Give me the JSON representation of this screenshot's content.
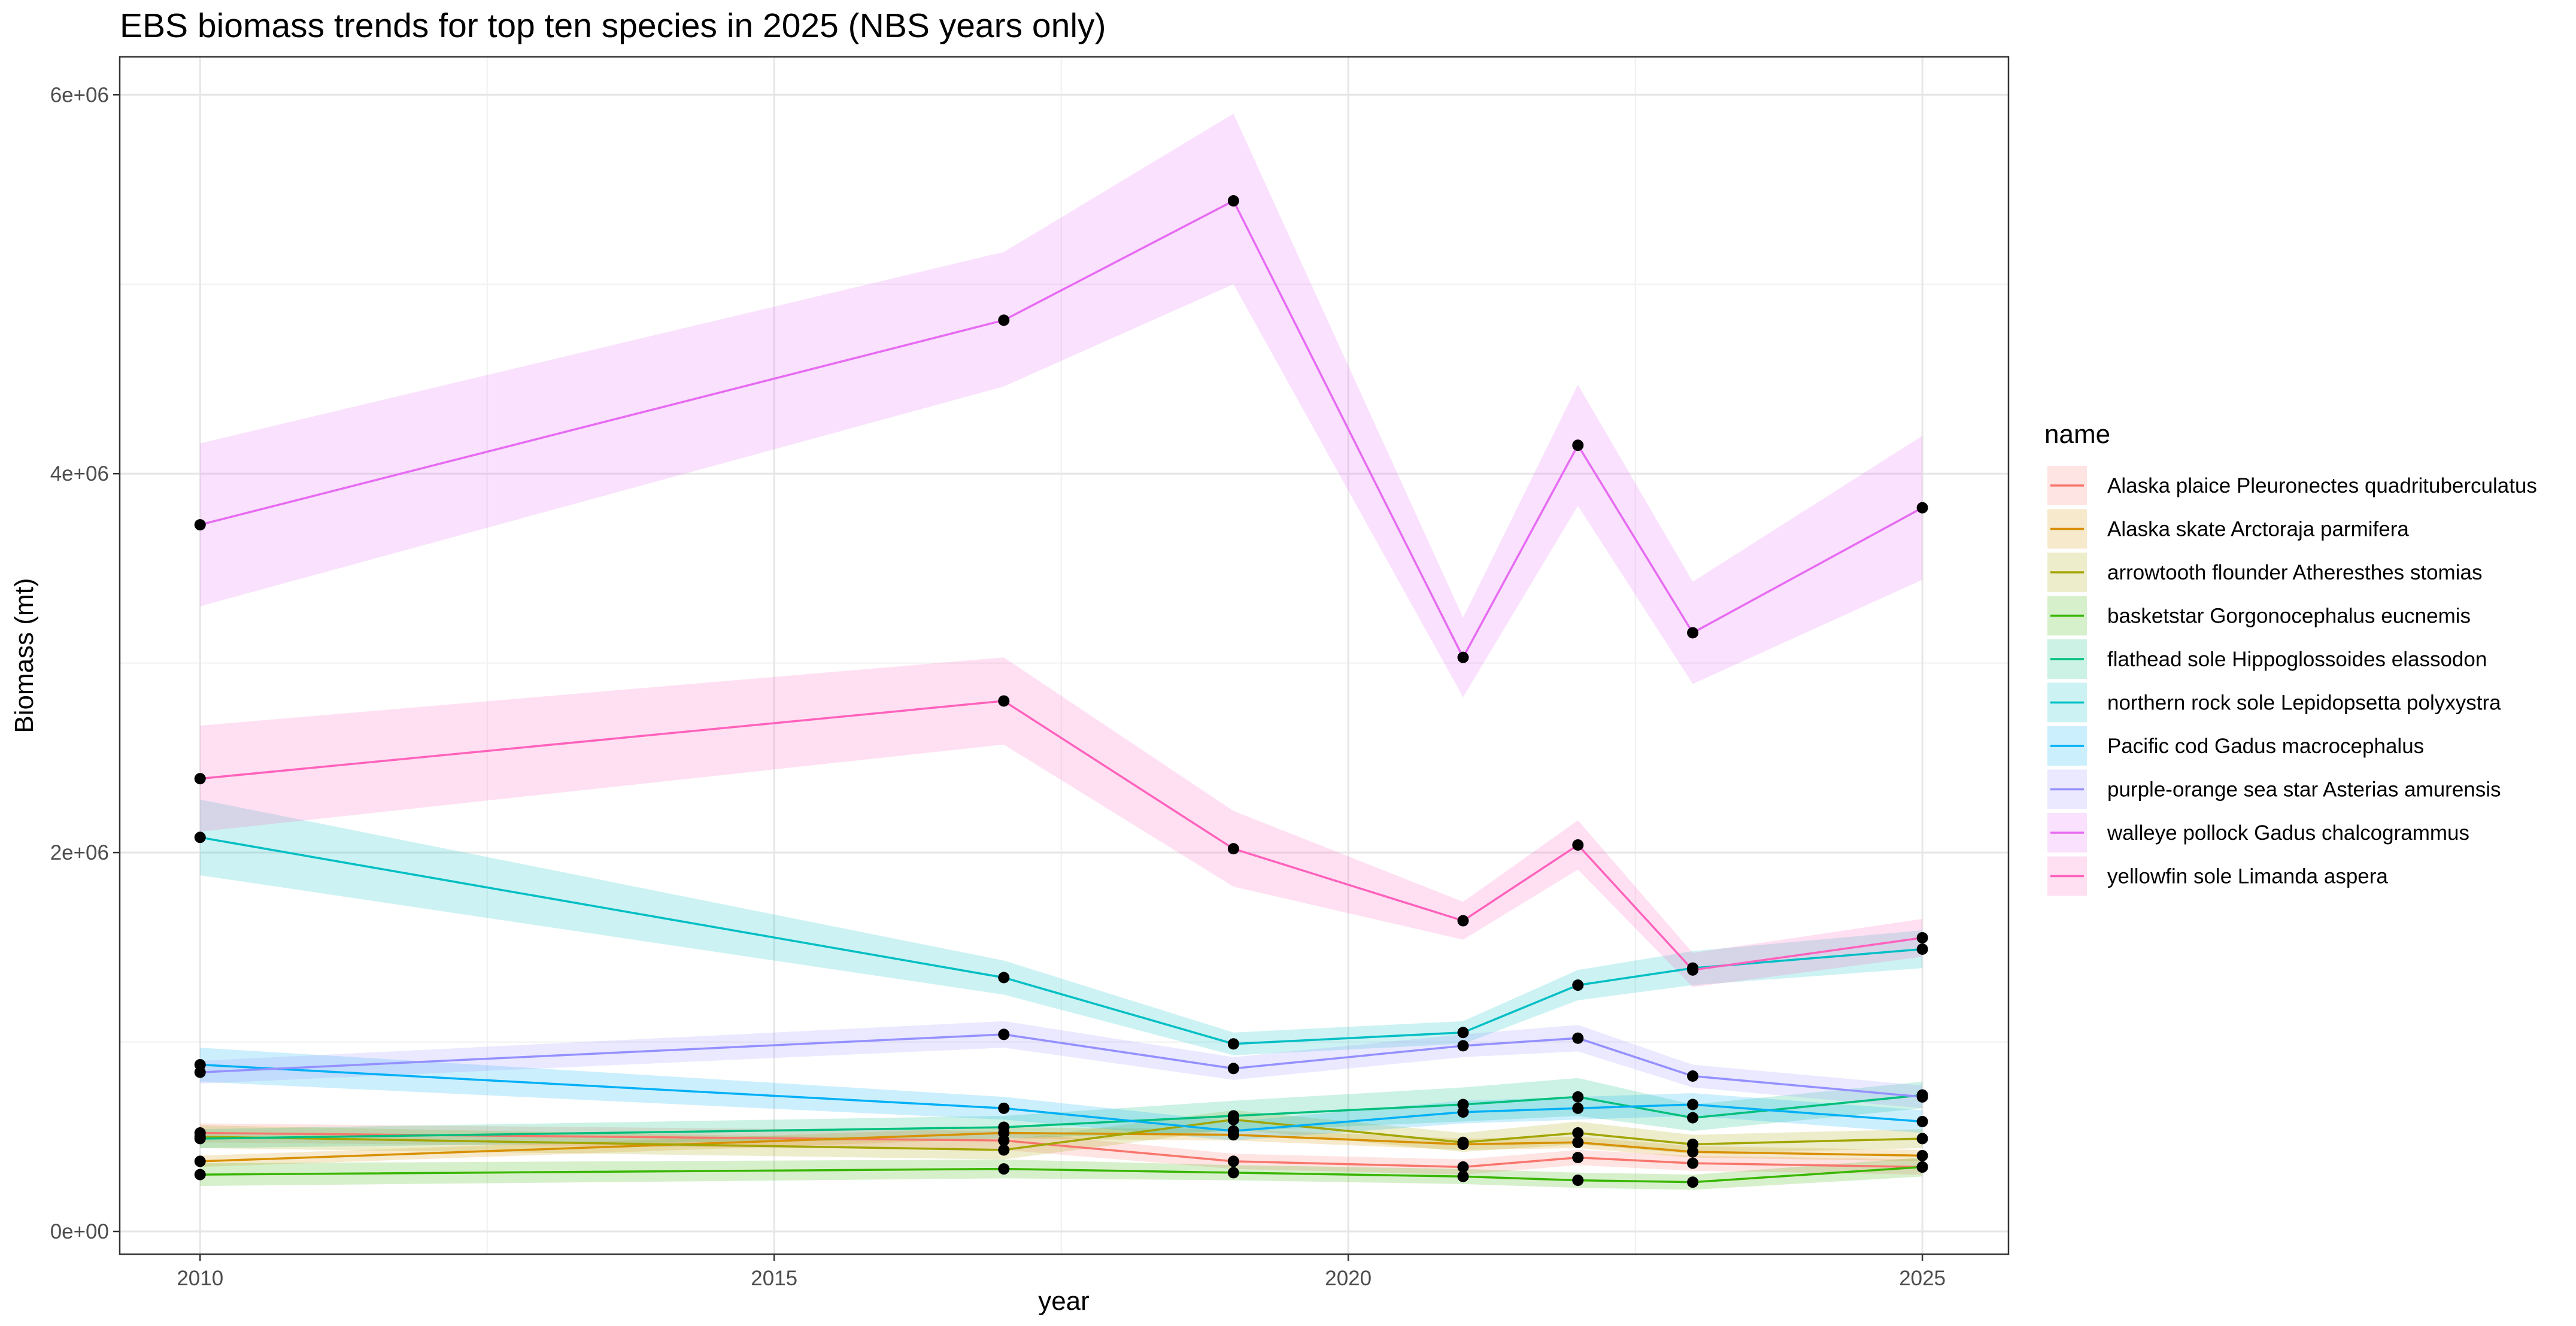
{
  "chart_data": {
    "type": "line",
    "title": "EBS biomass trends for top ten species in 2025 (NBS years only)",
    "xlabel": "year",
    "ylabel": "Biomass (mt)",
    "xlim": [
      2009.3,
      2025.75
    ],
    "ylim": [
      -120000,
      6200000
    ],
    "x_ticks": [
      2010,
      2015,
      2020,
      2025
    ],
    "x_tick_labels": [
      "2010",
      "2015",
      "2020",
      "2025"
    ],
    "y_ticks": [
      0,
      2000000,
      4000000,
      6000000
    ],
    "y_tick_labels": [
      "0e+00",
      "2e+06",
      "4e+06",
      "6e+06"
    ],
    "grid": true,
    "theme": "bw",
    "legend_title": "name",
    "legend_position": "right",
    "x": [
      2010,
      2017,
      2019,
      2021,
      2022,
      2023,
      2025
    ],
    "series": [
      {
        "name": "Alaska plaice Pleuronectes quadrituberculatus",
        "color": "#F8766D",
        "values": [
          520000,
          480000,
          370000,
          340000,
          390000,
          360000,
          340000
        ],
        "lower": [
          470000,
          430000,
          330000,
          300000,
          350000,
          320000,
          300000
        ],
        "upper": [
          570000,
          530000,
          410000,
          380000,
          430000,
          400000,
          380000
        ]
      },
      {
        "name": "Alaska skate Arctoraja parmifera",
        "color": "#D89000",
        "values": [
          370000,
          520000,
          510000,
          460000,
          470000,
          420000,
          400000
        ],
        "lower": [
          340000,
          490000,
          480000,
          430000,
          440000,
          390000,
          370000
        ],
        "upper": [
          400000,
          550000,
          540000,
          490000,
          500000,
          450000,
          430000
        ]
      },
      {
        "name": "arrowtooth flounder Atheresthes stomias",
        "color": "#A3A500",
        "values": [
          500000,
          430000,
          590000,
          470000,
          520000,
          460000,
          490000
        ],
        "lower": [
          440000,
          380000,
          540000,
          420000,
          460000,
          410000,
          440000
        ],
        "upper": [
          560000,
          480000,
          640000,
          520000,
          580000,
          510000,
          540000
        ]
      },
      {
        "name": "basketstar Gorgonocephalus eucnemis",
        "color": "#39B600",
        "values": [
          300000,
          330000,
          310000,
          290000,
          270000,
          260000,
          340000
        ],
        "lower": [
          240000,
          280000,
          270000,
          250000,
          230000,
          220000,
          290000
        ],
        "upper": [
          360000,
          380000,
          350000,
          330000,
          310000,
          300000,
          390000
        ]
      },
      {
        "name": "flathead sole Hippoglossoides elassodon",
        "color": "#00BF7D",
        "values": [
          490000,
          550000,
          610000,
          670000,
          710000,
          600000,
          720000
        ],
        "lower": [
          440000,
          490000,
          530000,
          580000,
          610000,
          530000,
          650000
        ],
        "upper": [
          540000,
          610000,
          690000,
          760000,
          810000,
          670000,
          790000
        ]
      },
      {
        "name": "northern rock sole Lepidopsetta polyxystra",
        "color": "#00BFC4",
        "values": [
          2080000,
          1340000,
          990000,
          1050000,
          1300000,
          1390000,
          1490000
        ],
        "lower": [
          1880000,
          1250000,
          930000,
          990000,
          1220000,
          1300000,
          1390000
        ],
        "upper": [
          2280000,
          1430000,
          1050000,
          1110000,
          1380000,
          1480000,
          1590000
        ]
      },
      {
        "name": "Pacific cod Gadus macrocephalus",
        "color": "#00B0F6",
        "values": [
          880000,
          650000,
          530000,
          630000,
          650000,
          670000,
          580000
        ],
        "lower": [
          790000,
          590000,
          480000,
          570000,
          590000,
          610000,
          520000
        ],
        "upper": [
          970000,
          710000,
          580000,
          690000,
          710000,
          730000,
          640000
        ]
      },
      {
        "name": "purple-orange sea star Asterias amurensis",
        "color": "#9590FF",
        "values": [
          840000,
          1040000,
          860000,
          980000,
          1020000,
          820000,
          710000
        ],
        "lower": [
          780000,
          970000,
          800000,
          920000,
          950000,
          760000,
          650000
        ],
        "upper": [
          900000,
          1110000,
          920000,
          1040000,
          1090000,
          880000,
          770000
        ]
      },
      {
        "name": "walleye pollock Gadus chalcogrammus",
        "color": "#E76BF3",
        "values": [
          3730000,
          4810000,
          5440000,
          3030000,
          4150000,
          3160000,
          3820000
        ],
        "lower": [
          3300000,
          4460000,
          5000000,
          2820000,
          3830000,
          2890000,
          3440000
        ],
        "upper": [
          4160000,
          5170000,
          5900000,
          3240000,
          4470000,
          3430000,
          4200000
        ]
      },
      {
        "name": "yellowfin sole Limanda aspera",
        "color": "#FF62BC",
        "values": [
          2390000,
          2800000,
          2020000,
          1640000,
          2040000,
          1380000,
          1550000
        ],
        "lower": [
          2110000,
          2570000,
          1820000,
          1540000,
          1910000,
          1290000,
          1450000
        ],
        "upper": [
          2670000,
          3030000,
          2220000,
          1740000,
          2170000,
          1470000,
          1650000
        ]
      }
    ]
  }
}
